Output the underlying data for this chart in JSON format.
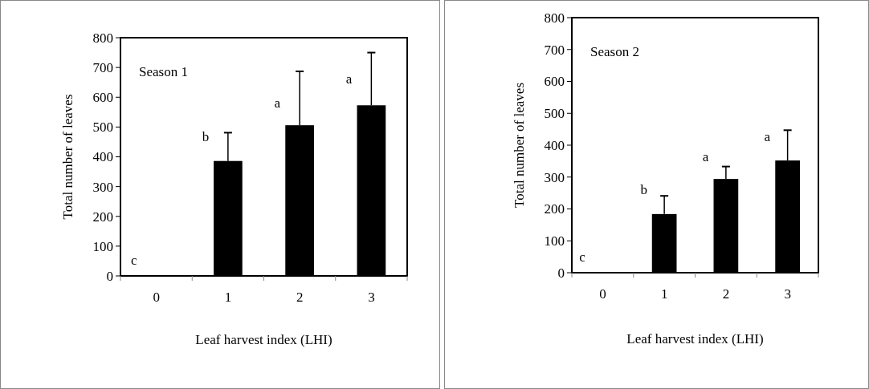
{
  "chart_data": [
    {
      "type": "bar",
      "xlabel": "Leaf  harvest index (LHI)",
      "ylabel": "Total number of leaves",
      "categories": [
        "0",
        "1",
        "2",
        "3"
      ],
      "values": [
        0,
        386,
        506,
        573
      ],
      "color": "#000000",
      "errors": [
        null,
        [
          386,
          481
        ],
        [
          506,
          687
        ],
        [
          573,
          750
        ]
      ],
      "ylim": [
        0,
        800
      ],
      "yticks": [
        0,
        100,
        200,
        300,
        400,
        500,
        600,
        700,
        800
      ],
      "annotations": [
        "Season 1",
        {
          "text": "c",
          "x": "0",
          "y": 0
        },
        {
          "text": "b",
          "x": "1",
          "y": 416
        },
        {
          "text": "a",
          "x": "2",
          "y": 528
        },
        {
          "text": "a",
          "x": "3",
          "y": 609
        }
      ]
    },
    {
      "type": "bar",
      "xlabel": "Leaf harvest index (LHI)",
      "ylabel": "Total number of leaves",
      "categories": [
        "0",
        "1",
        "2",
        "3"
      ],
      "values": [
        0,
        184,
        294,
        352
      ],
      "color": "#000000",
      "errors": [
        null,
        [
          184,
          241
        ],
        [
          294,
          333
        ],
        [
          352,
          447
        ]
      ],
      "ylim": [
        0,
        800
      ],
      "yticks": [
        0,
        100,
        200,
        300,
        400,
        500,
        600,
        700,
        800
      ],
      "annotations": [
        "Season 2",
        {
          "text": "c",
          "x": "0",
          "y": 0
        },
        {
          "text": "b",
          "x": "1",
          "y": 211
        },
        {
          "text": "a",
          "x": "2",
          "y": 315
        },
        {
          "text": "a",
          "x": "3",
          "y": 377
        }
      ]
    }
  ]
}
